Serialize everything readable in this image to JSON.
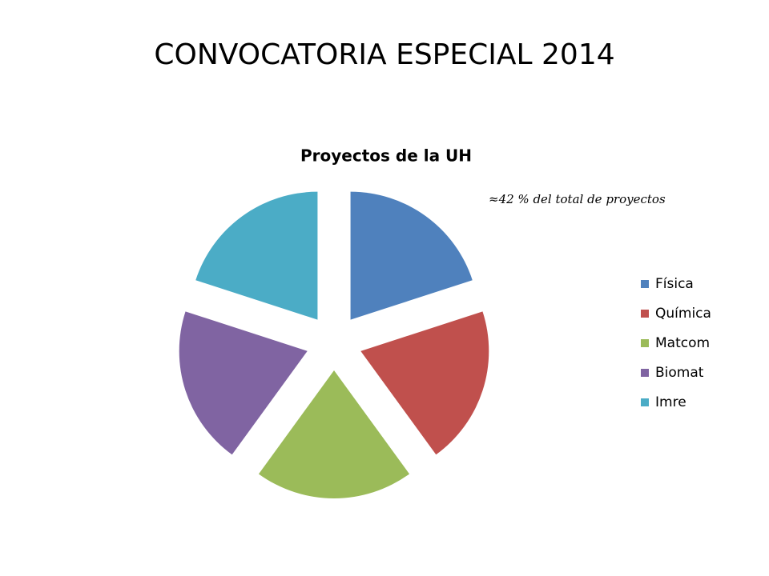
{
  "slide_title": "CONVOCATORIA ESPECIAL 2014",
  "chart_data": {
    "type": "pie",
    "title": "Proyectos de la UH",
    "annotation": "≈42 % del total de proyectos",
    "categories": [
      "Física",
      "Química",
      "Matcom",
      "Biomat",
      "Imre"
    ],
    "values": [
      20,
      20,
      20,
      20,
      20
    ],
    "colors": [
      "#4f81bd",
      "#c0504d",
      "#9bbb59",
      "#8064a2",
      "#4bacc6"
    ],
    "legend": "right"
  }
}
